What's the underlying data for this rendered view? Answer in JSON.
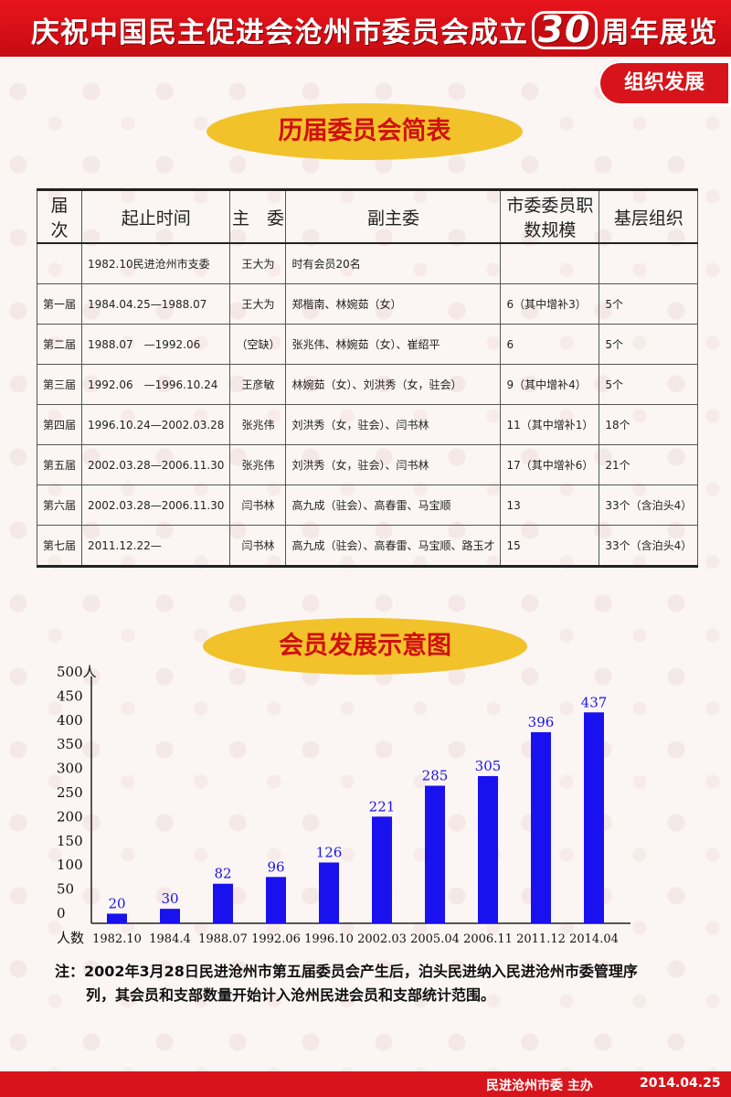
{
  "header": {
    "title_pre": "庆祝中国民主促进会沧州市委员会成立",
    "title_num": "30",
    "title_post": "周年展览",
    "tag": "组织发展"
  },
  "table_section": {
    "title": "历届委员会简表",
    "columns": [
      "届　次",
      "起止时间",
      "主　委",
      "副主委",
      "市委委员职数规模",
      "基层组织"
    ],
    "rows": [
      [
        "",
        "1982.10民进沧州市支委",
        "王大为",
        "时有会员20名",
        "",
        ""
      ],
      [
        "第一届",
        "1984.04.25—1988.07",
        "王大为",
        "郑楷南、林婉茹（女）",
        "6（其中增补3）",
        "5个"
      ],
      [
        "第二届",
        "1988.07　—1992.06",
        "（空缺）",
        "张兆伟、林婉茹（女）、崔绍平",
        "6",
        "5个"
      ],
      [
        "第三届",
        "1992.06　—1996.10.24",
        "王彦敏",
        "林婉茹（女）、刘洪秀（女，驻会）",
        "9（其中增补4）",
        "5个"
      ],
      [
        "第四届",
        "1996.10.24—2002.03.28",
        "张兆伟",
        "刘洪秀（女，驻会）、闫书林",
        "11（其中增补1）",
        "18个"
      ],
      [
        "第五届",
        "2002.03.28—2006.11.30",
        "张兆伟",
        "刘洪秀（女，驻会）、闫书林",
        "17（其中增补6）",
        "21个"
      ],
      [
        "第六届",
        "2002.03.28—2006.11.30",
        "闫书林",
        "高九成（驻会）、高春雷、马宝顺",
        "13",
        "33个（含泊头4）"
      ],
      [
        "第七届",
        "2011.12.22—",
        "闫书林",
        "高九成（驻会）、高春雷、马宝顺、路玉才",
        "15",
        "33个（含泊头4）"
      ]
    ]
  },
  "chart_section": {
    "title": "会员发展示意图"
  },
  "chart_data": {
    "type": "bar",
    "categories": [
      "1982.10",
      "1984.4",
      "1988.07",
      "1992.06",
      "1996.10",
      "2002.03",
      "2005.04",
      "2006.11",
      "2011.12",
      "2014.04"
    ],
    "values": [
      20,
      30,
      82,
      96,
      126,
      221,
      285,
      305,
      396,
      437
    ],
    "ylim": [
      0,
      500
    ],
    "yticks": [
      "0",
      "50",
      "100",
      "150",
      "200",
      "250",
      "300",
      "350",
      "400",
      "450",
      "500人"
    ],
    "ylabel": "人数",
    "bar_color": "#1a12ee",
    "label_color": "#1a12ee"
  },
  "note": {
    "line1": "注：2002年3月28日民进沧州市第五届委员会产生后，泊头民进纳入民进沧州市委管理序",
    "line2": "列，其会员和支部数量开始计入沧州民进会员和支部统计范围。"
  },
  "footer": {
    "host": "民进沧州市委  主办",
    "date": "2014.04.25"
  },
  "colors": {
    "header_red": "#d7141b",
    "oval_yellow": "#f2c22a",
    "title_red": "#d01010"
  }
}
